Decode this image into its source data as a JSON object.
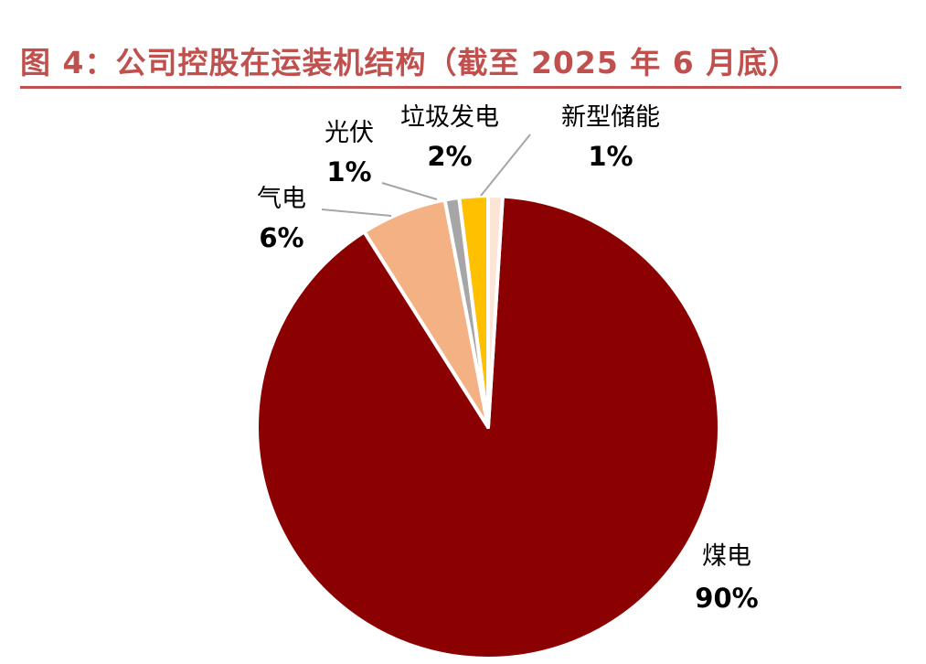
{
  "title": "图 4：公司控股在运装机结构（截至 2025 年 6 月底）",
  "chart_data": {
    "type": "pie",
    "title": "图 4：公司控股在运装机结构（截至 2025 年 6 月底）",
    "slices": [
      {
        "name": "煤电",
        "value": 90,
        "label": "90%",
        "color": "#8b0000"
      },
      {
        "name": "气电",
        "value": 6,
        "label": "6%",
        "color": "#f4b183"
      },
      {
        "name": "光伏",
        "value": 1,
        "label": "1%",
        "color": "#a6a6a6"
      },
      {
        "name": "垃圾发电",
        "value": 2,
        "label": "2%",
        "color": "#ffc000"
      },
      {
        "name": "新型储能",
        "value": 1,
        "label": "1%",
        "color": "#fce4d6"
      }
    ],
    "legend": "none",
    "accent_color": "#c0504d"
  }
}
